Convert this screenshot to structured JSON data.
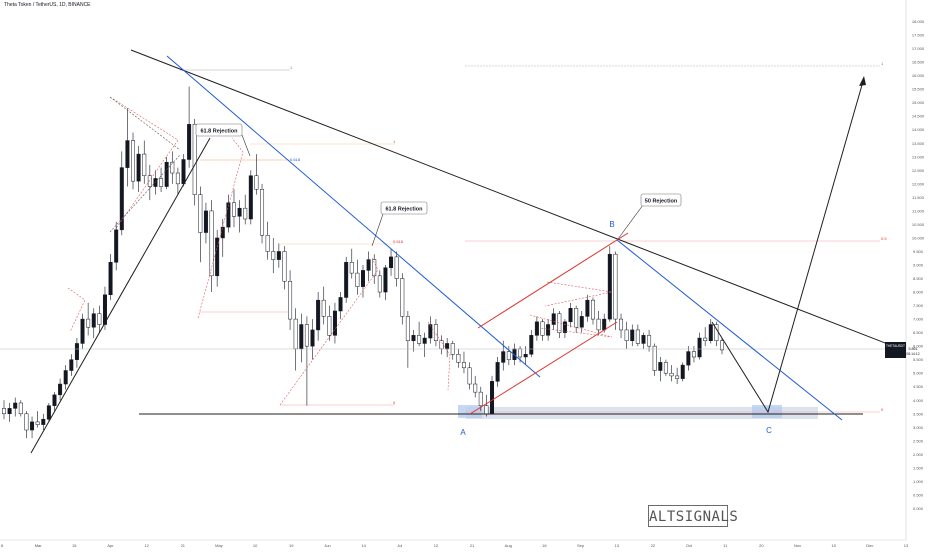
{
  "header": {
    "symbol_line": "Theta Token / TetherUS, 1D, BINANCE"
  },
  "watermark": "ALTSIGNALS",
  "price_badge": {
    "ticker": "THETAUSDT",
    "price": "5.861",
    "countdown": "08:14:12"
  },
  "annotations": {
    "rejection_1": "61.8 Rejection",
    "rejection_2": "61.8 Rejection",
    "rejection_3": "50 Rejection",
    "wave_a": "A",
    "wave_b": "B",
    "wave_c": "C"
  },
  "fib_labels": {
    "f1_top": "1",
    "f1_mid": "0.618",
    "f1_bottom": "0",
    "f2_top": "1",
    "f2_mid": "0.618",
    "f2_bottom": "0",
    "f3_top": "1",
    "f3_mid": "0.5",
    "f3_bottom": "0"
  },
  "colors": {
    "up": "#131722",
    "down": "#ffffff",
    "trend": "#1f1f1f",
    "blue": "#1e5bd6",
    "red": "#e0322f",
    "support_zone": "#dbe3ef"
  },
  "chart_data": {
    "type": "candlestick",
    "title": "Theta Token / TetherUS, 1D, BINANCE",
    "ylim": [
      -0.5,
      18.5
    ],
    "y_ticks": [
      "18.000",
      "17.500",
      "17.000",
      "16.500",
      "16.000",
      "15.500",
      "15.000",
      "14.500",
      "14.000",
      "13.500",
      "13.000",
      "12.500",
      "12.000",
      "11.500",
      "11.000",
      "10.500",
      "10.000",
      "9.500",
      "9.000",
      "8.500",
      "8.000",
      "7.500",
      "7.000",
      "6.500",
      "6.000",
      "5.500",
      "5.000",
      "4.500",
      "4.000",
      "3.500",
      "3.000",
      "2.500",
      "2.000",
      "1.500",
      "1.000",
      "0.500",
      "0.000"
    ],
    "x_ticks": [
      "8",
      "Mar",
      "15",
      "Apr",
      "12",
      "21",
      "May",
      "10",
      "19",
      "Jun",
      "14",
      "Jul",
      "12",
      "21",
      "Aug",
      "16",
      "Sep",
      "13",
      "22",
      "Oct",
      "11",
      "20",
      "Nov",
      "15",
      "Dec",
      "13"
    ],
    "candles": [
      {
        "o": 3.7,
        "h": 4.0,
        "l": 3.3,
        "c": 3.5
      },
      {
        "o": 3.5,
        "h": 3.9,
        "l": 3.2,
        "c": 3.7
      },
      {
        "o": 3.7,
        "h": 4.1,
        "l": 3.4,
        "c": 3.9
      },
      {
        "o": 3.9,
        "h": 4.0,
        "l": 3.4,
        "c": 3.5
      },
      {
        "o": 3.5,
        "h": 3.6,
        "l": 2.6,
        "c": 2.9
      },
      {
        "o": 2.9,
        "h": 3.4,
        "l": 2.6,
        "c": 3.2
      },
      {
        "o": 3.2,
        "h": 3.6,
        "l": 3.0,
        "c": 3.1
      },
      {
        "o": 3.1,
        "h": 3.5,
        "l": 2.9,
        "c": 3.3
      },
      {
        "o": 3.3,
        "h": 3.9,
        "l": 3.2,
        "c": 3.8
      },
      {
        "o": 3.8,
        "h": 4.3,
        "l": 3.6,
        "c": 4.2
      },
      {
        "o": 4.2,
        "h": 4.8,
        "l": 4.0,
        "c": 4.6
      },
      {
        "o": 4.6,
        "h": 5.3,
        "l": 4.4,
        "c": 5.1
      },
      {
        "o": 5.1,
        "h": 5.7,
        "l": 4.9,
        "c": 5.5
      },
      {
        "o": 5.5,
        "h": 6.3,
        "l": 5.2,
        "c": 6.1
      },
      {
        "o": 6.1,
        "h": 7.2,
        "l": 5.9,
        "c": 7.0
      },
      {
        "o": 7.0,
        "h": 7.6,
        "l": 6.4,
        "c": 6.7
      },
      {
        "o": 6.7,
        "h": 7.4,
        "l": 6.3,
        "c": 7.2
      },
      {
        "o": 7.2,
        "h": 7.5,
        "l": 6.5,
        "c": 6.8
      },
      {
        "o": 6.8,
        "h": 8.2,
        "l": 6.6,
        "c": 7.9
      },
      {
        "o": 7.9,
        "h": 9.4,
        "l": 7.7,
        "c": 9.1
      },
      {
        "o": 9.1,
        "h": 10.6,
        "l": 8.8,
        "c": 10.3
      },
      {
        "o": 10.3,
        "h": 13.2,
        "l": 10.1,
        "c": 12.6
      },
      {
        "o": 12.6,
        "h": 14.8,
        "l": 11.9,
        "c": 13.6
      },
      {
        "o": 13.6,
        "h": 13.9,
        "l": 11.8,
        "c": 12.1
      },
      {
        "o": 12.1,
        "h": 13.4,
        "l": 11.7,
        "c": 13.1
      },
      {
        "o": 13.1,
        "h": 13.6,
        "l": 12.0,
        "c": 12.3
      },
      {
        "o": 12.3,
        "h": 12.7,
        "l": 11.4,
        "c": 11.9
      },
      {
        "o": 11.9,
        "h": 12.5,
        "l": 11.6,
        "c": 12.2
      },
      {
        "o": 12.2,
        "h": 12.6,
        "l": 11.7,
        "c": 11.9
      },
      {
        "o": 11.9,
        "h": 13.0,
        "l": 11.8,
        "c": 12.8
      },
      {
        "o": 12.8,
        "h": 13.2,
        "l": 12.0,
        "c": 12.4
      },
      {
        "o": 12.4,
        "h": 12.6,
        "l": 11.6,
        "c": 12.0
      },
      {
        "o": 12.0,
        "h": 13.1,
        "l": 11.9,
        "c": 12.9
      },
      {
        "o": 12.9,
        "h": 15.6,
        "l": 12.6,
        "c": 14.2
      },
      {
        "o": 14.2,
        "h": 14.4,
        "l": 11.2,
        "c": 11.6
      },
      {
        "o": 11.6,
        "h": 11.9,
        "l": 9.1,
        "c": 10.2
      },
      {
        "o": 10.2,
        "h": 11.3,
        "l": 9.8,
        "c": 11.0
      },
      {
        "o": 11.0,
        "h": 11.4,
        "l": 8.0,
        "c": 8.6
      },
      {
        "o": 8.6,
        "h": 10.3,
        "l": 8.2,
        "c": 10.0
      },
      {
        "o": 10.0,
        "h": 10.7,
        "l": 9.3,
        "c": 10.4
      },
      {
        "o": 10.4,
        "h": 11.6,
        "l": 10.2,
        "c": 11.3
      },
      {
        "o": 11.3,
        "h": 11.8,
        "l": 10.4,
        "c": 10.8
      },
      {
        "o": 10.8,
        "h": 11.4,
        "l": 10.2,
        "c": 11.1
      },
      {
        "o": 11.1,
        "h": 11.6,
        "l": 10.5,
        "c": 10.7
      },
      {
        "o": 10.7,
        "h": 12.5,
        "l": 10.5,
        "c": 12.3
      },
      {
        "o": 12.3,
        "h": 13.1,
        "l": 11.6,
        "c": 11.8
      },
      {
        "o": 11.8,
        "h": 12.0,
        "l": 9.8,
        "c": 10.1
      },
      {
        "o": 10.1,
        "h": 10.6,
        "l": 9.2,
        "c": 9.5
      },
      {
        "o": 9.5,
        "h": 10.0,
        "l": 8.7,
        "c": 9.2
      },
      {
        "o": 9.2,
        "h": 9.8,
        "l": 8.9,
        "c": 9.5
      },
      {
        "o": 9.5,
        "h": 9.7,
        "l": 8.1,
        "c": 8.4
      },
      {
        "o": 8.4,
        "h": 8.8,
        "l": 6.6,
        "c": 7.0
      },
      {
        "o": 7.0,
        "h": 7.4,
        "l": 5.1,
        "c": 5.9
      },
      {
        "o": 5.9,
        "h": 7.2,
        "l": 5.4,
        "c": 6.8
      },
      {
        "o": 6.8,
        "h": 7.1,
        "l": 3.8,
        "c": 6.0
      },
      {
        "o": 6.0,
        "h": 7.0,
        "l": 5.5,
        "c": 6.6
      },
      {
        "o": 6.6,
        "h": 8.0,
        "l": 6.2,
        "c": 7.7
      },
      {
        "o": 7.7,
        "h": 8.2,
        "l": 6.8,
        "c": 7.1
      },
      {
        "o": 7.1,
        "h": 7.5,
        "l": 6.2,
        "c": 6.4
      },
      {
        "o": 6.4,
        "h": 7.6,
        "l": 6.1,
        "c": 7.3
      },
      {
        "o": 7.3,
        "h": 8.0,
        "l": 7.0,
        "c": 7.8
      },
      {
        "o": 7.8,
        "h": 9.3,
        "l": 7.6,
        "c": 9.1
      },
      {
        "o": 9.1,
        "h": 9.6,
        "l": 8.5,
        "c": 8.7
      },
      {
        "o": 8.7,
        "h": 9.2,
        "l": 7.9,
        "c": 8.2
      },
      {
        "o": 8.2,
        "h": 9.0,
        "l": 7.8,
        "c": 8.8
      },
      {
        "o": 8.8,
        "h": 9.5,
        "l": 8.4,
        "c": 9.2
      },
      {
        "o": 9.2,
        "h": 9.4,
        "l": 8.3,
        "c": 8.6
      },
      {
        "o": 8.6,
        "h": 8.8,
        "l": 7.8,
        "c": 8.0
      },
      {
        "o": 8.0,
        "h": 9.0,
        "l": 7.7,
        "c": 8.9
      },
      {
        "o": 8.9,
        "h": 9.6,
        "l": 8.6,
        "c": 9.3
      },
      {
        "o": 9.3,
        "h": 9.5,
        "l": 8.2,
        "c": 8.5
      },
      {
        "o": 8.5,
        "h": 8.7,
        "l": 6.8,
        "c": 7.1
      },
      {
        "o": 7.1,
        "h": 7.3,
        "l": 5.2,
        "c": 6.2
      },
      {
        "o": 6.2,
        "h": 6.6,
        "l": 5.8,
        "c": 6.4
      },
      {
        "o": 6.4,
        "h": 6.9,
        "l": 6.0,
        "c": 6.1
      },
      {
        "o": 6.1,
        "h": 6.5,
        "l": 5.6,
        "c": 6.3
      },
      {
        "o": 6.3,
        "h": 7.1,
        "l": 6.1,
        "c": 6.8
      },
      {
        "o": 6.8,
        "h": 7.0,
        "l": 6.0,
        "c": 6.2
      },
      {
        "o": 6.2,
        "h": 6.4,
        "l": 5.7,
        "c": 5.9
      },
      {
        "o": 5.9,
        "h": 6.3,
        "l": 5.6,
        "c": 6.1
      },
      {
        "o": 6.1,
        "h": 6.2,
        "l": 5.5,
        "c": 5.7
      },
      {
        "o": 5.7,
        "h": 5.9,
        "l": 5.2,
        "c": 5.4
      },
      {
        "o": 5.4,
        "h": 5.8,
        "l": 5.0,
        "c": 5.2
      },
      {
        "o": 5.2,
        "h": 5.4,
        "l": 4.4,
        "c": 4.6
      },
      {
        "o": 4.6,
        "h": 4.9,
        "l": 4.1,
        "c": 4.3
      },
      {
        "o": 4.3,
        "h": 4.5,
        "l": 3.6,
        "c": 3.8
      },
      {
        "o": 3.8,
        "h": 4.2,
        "l": 3.4,
        "c": 3.5
      },
      {
        "o": 3.5,
        "h": 4.9,
        "l": 3.5,
        "c": 4.7
      },
      {
        "o": 4.7,
        "h": 5.6,
        "l": 4.5,
        "c": 5.4
      },
      {
        "o": 5.4,
        "h": 6.2,
        "l": 5.1,
        "c": 5.8
      },
      {
        "o": 5.8,
        "h": 6.0,
        "l": 5.3,
        "c": 5.5
      },
      {
        "o": 5.5,
        "h": 6.1,
        "l": 5.3,
        "c": 5.9
      },
      {
        "o": 5.9,
        "h": 6.0,
        "l": 5.4,
        "c": 5.6
      },
      {
        "o": 5.6,
        "h": 6.0,
        "l": 5.3,
        "c": 5.7
      },
      {
        "o": 5.7,
        "h": 6.6,
        "l": 5.6,
        "c": 6.4
      },
      {
        "o": 6.4,
        "h": 7.1,
        "l": 6.2,
        "c": 6.9
      },
      {
        "o": 6.9,
        "h": 7.0,
        "l": 6.2,
        "c": 6.4
      },
      {
        "o": 6.4,
        "h": 7.0,
        "l": 6.2,
        "c": 6.8
      },
      {
        "o": 6.8,
        "h": 7.4,
        "l": 6.6,
        "c": 7.2
      },
      {
        "o": 7.2,
        "h": 7.3,
        "l": 6.3,
        "c": 6.5
      },
      {
        "o": 6.5,
        "h": 7.0,
        "l": 6.3,
        "c": 6.9
      },
      {
        "o": 6.9,
        "h": 7.6,
        "l": 6.7,
        "c": 7.4
      },
      {
        "o": 7.4,
        "h": 7.5,
        "l": 6.5,
        "c": 6.7
      },
      {
        "o": 6.7,
        "h": 7.3,
        "l": 6.5,
        "c": 7.1
      },
      {
        "o": 7.1,
        "h": 7.9,
        "l": 6.9,
        "c": 7.7
      },
      {
        "o": 7.7,
        "h": 7.8,
        "l": 6.8,
        "c": 7.0
      },
      {
        "o": 7.0,
        "h": 7.3,
        "l": 6.4,
        "c": 6.6
      },
      {
        "o": 6.6,
        "h": 7.2,
        "l": 6.5,
        "c": 7.0
      },
      {
        "o": 7.0,
        "h": 9.7,
        "l": 6.9,
        "c": 9.4
      },
      {
        "o": 9.4,
        "h": 9.5,
        "l": 6.6,
        "c": 7.0
      },
      {
        "o": 7.0,
        "h": 7.2,
        "l": 6.3,
        "c": 6.6
      },
      {
        "o": 6.6,
        "h": 6.9,
        "l": 5.9,
        "c": 6.2
      },
      {
        "o": 6.2,
        "h": 6.8,
        "l": 6.0,
        "c": 6.6
      },
      {
        "o": 6.6,
        "h": 6.8,
        "l": 6.0,
        "c": 6.1
      },
      {
        "o": 6.1,
        "h": 6.5,
        "l": 5.9,
        "c": 6.4
      },
      {
        "o": 6.4,
        "h": 6.6,
        "l": 5.8,
        "c": 6.0
      },
      {
        "o": 6.0,
        "h": 6.1,
        "l": 4.9,
        "c": 5.1
      },
      {
        "o": 5.1,
        "h": 5.6,
        "l": 4.7,
        "c": 5.4
      },
      {
        "o": 5.4,
        "h": 5.5,
        "l": 4.9,
        "c": 5.0
      },
      {
        "o": 5.0,
        "h": 5.3,
        "l": 4.7,
        "c": 4.9
      },
      {
        "o": 4.9,
        "h": 5.2,
        "l": 4.6,
        "c": 4.8
      },
      {
        "o": 4.8,
        "h": 5.4,
        "l": 4.7,
        "c": 5.3
      },
      {
        "o": 5.3,
        "h": 6.0,
        "l": 5.1,
        "c": 5.8
      },
      {
        "o": 5.8,
        "h": 6.0,
        "l": 5.4,
        "c": 5.6
      },
      {
        "o": 5.6,
        "h": 6.5,
        "l": 5.5,
        "c": 6.3
      },
      {
        "o": 6.3,
        "h": 6.7,
        "l": 6.0,
        "c": 6.2
      },
      {
        "o": 6.2,
        "h": 7.0,
        "l": 6.1,
        "c": 6.8
      },
      {
        "o": 6.8,
        "h": 6.9,
        "l": 6.0,
        "c": 6.2
      },
      {
        "o": 6.2,
        "h": 6.3,
        "l": 5.7,
        "c": 5.86
      }
    ]
  }
}
